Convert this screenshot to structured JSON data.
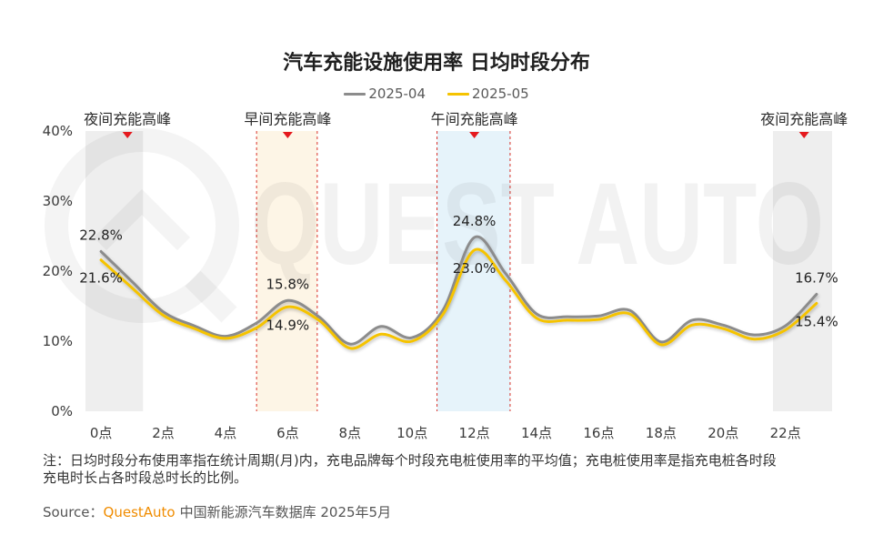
{
  "watermark": "QUEST AUTO",
  "chart_data": {
    "type": "line",
    "title": "汽车充能设施使用率 日均时段分布",
    "x": [
      0,
      1,
      2,
      3,
      4,
      5,
      6,
      7,
      8,
      9,
      10,
      11,
      12,
      13,
      14,
      15,
      16,
      17,
      18,
      19,
      20,
      21,
      22,
      23
    ],
    "x_ticks": [
      0,
      2,
      4,
      6,
      8,
      10,
      12,
      14,
      16,
      18,
      20,
      22
    ],
    "x_tick_labels": [
      "0点",
      "2点",
      "4点",
      "6点",
      "8点",
      "10点",
      "12点",
      "14点",
      "16点",
      "18点",
      "20点",
      "22点"
    ],
    "xlim": [
      -0.5,
      23.5
    ],
    "y_ticks": [
      0,
      10,
      20,
      30,
      40
    ],
    "y_tick_labels": [
      "0%",
      "10%",
      "20%",
      "30%",
      "40%"
    ],
    "ylim": [
      0,
      40
    ],
    "grid": false,
    "legend_position": "top",
    "series": [
      {
        "name": "2025-04",
        "color": "#8c8c8c",
        "values": [
          22.8,
          18.5,
          14.2,
          12.2,
          10.7,
          12.6,
          15.8,
          13.5,
          9.6,
          12.1,
          10.5,
          14.5,
          24.8,
          19.7,
          13.9,
          13.5,
          13.6,
          14.4,
          9.9,
          13.0,
          12.3,
          10.9,
          12.2,
          16.7
        ],
        "data_labels": [
          {
            "x": 0,
            "text": "22.8%"
          },
          {
            "x": 6,
            "text": "15.8%"
          },
          {
            "x": 12,
            "text": "24.8%"
          },
          {
            "x": 23,
            "text": "16.7%"
          }
        ]
      },
      {
        "name": "2025-05",
        "color": "#f5c300",
        "values": [
          21.6,
          17.6,
          13.7,
          11.8,
          10.4,
          11.9,
          14.9,
          13.0,
          9.0,
          11.0,
          10.0,
          13.9,
          23.0,
          18.7,
          13.3,
          13.0,
          13.1,
          13.9,
          9.5,
          12.3,
          11.8,
          10.3,
          11.6,
          15.4
        ],
        "data_labels": [
          {
            "x": 0,
            "text": "21.6%"
          },
          {
            "x": 6,
            "text": "14.9%"
          },
          {
            "x": 12,
            "text": "23.0%"
          },
          {
            "x": 23,
            "text": "15.4%"
          }
        ]
      }
    ],
    "annotations": [
      {
        "label": "夜间充能高峰",
        "x_start": -0.5,
        "x_end": 1.35,
        "marker_x": 0.85,
        "fill": "#eeeeee",
        "border_color": null
      },
      {
        "label": "早间充能高峰",
        "x_start": 5.0,
        "x_end": 6.95,
        "marker_x": 6.0,
        "fill": "#fdf5e6",
        "border_color": "#d9322b"
      },
      {
        "label": "午间充能高峰",
        "x_start": 10.8,
        "x_end": 13.15,
        "marker_x": 12.0,
        "fill": "#e6f3fa",
        "border_color": "#d9322b"
      },
      {
        "label": "夜间充能高峰",
        "x_start": 21.6,
        "x_end": 23.5,
        "marker_x": 22.6,
        "fill": "#eeeeee",
        "border_color": null
      }
    ],
    "marker_color": "#e5191e"
  },
  "footnote": [
    "注：日均时段分布使用率指在统计周期(月)内，充电品牌每个时段充电桩使用率的平均值；充电桩使用率是指充电桩各时段",
    "充电时长占各时段总时长的比例。"
  ],
  "source": {
    "label": "Source：",
    "brand": "QuestAuto",
    "text": "中国新能源汽车数据库 2025年5月",
    "brand_color": "#f08c00"
  }
}
